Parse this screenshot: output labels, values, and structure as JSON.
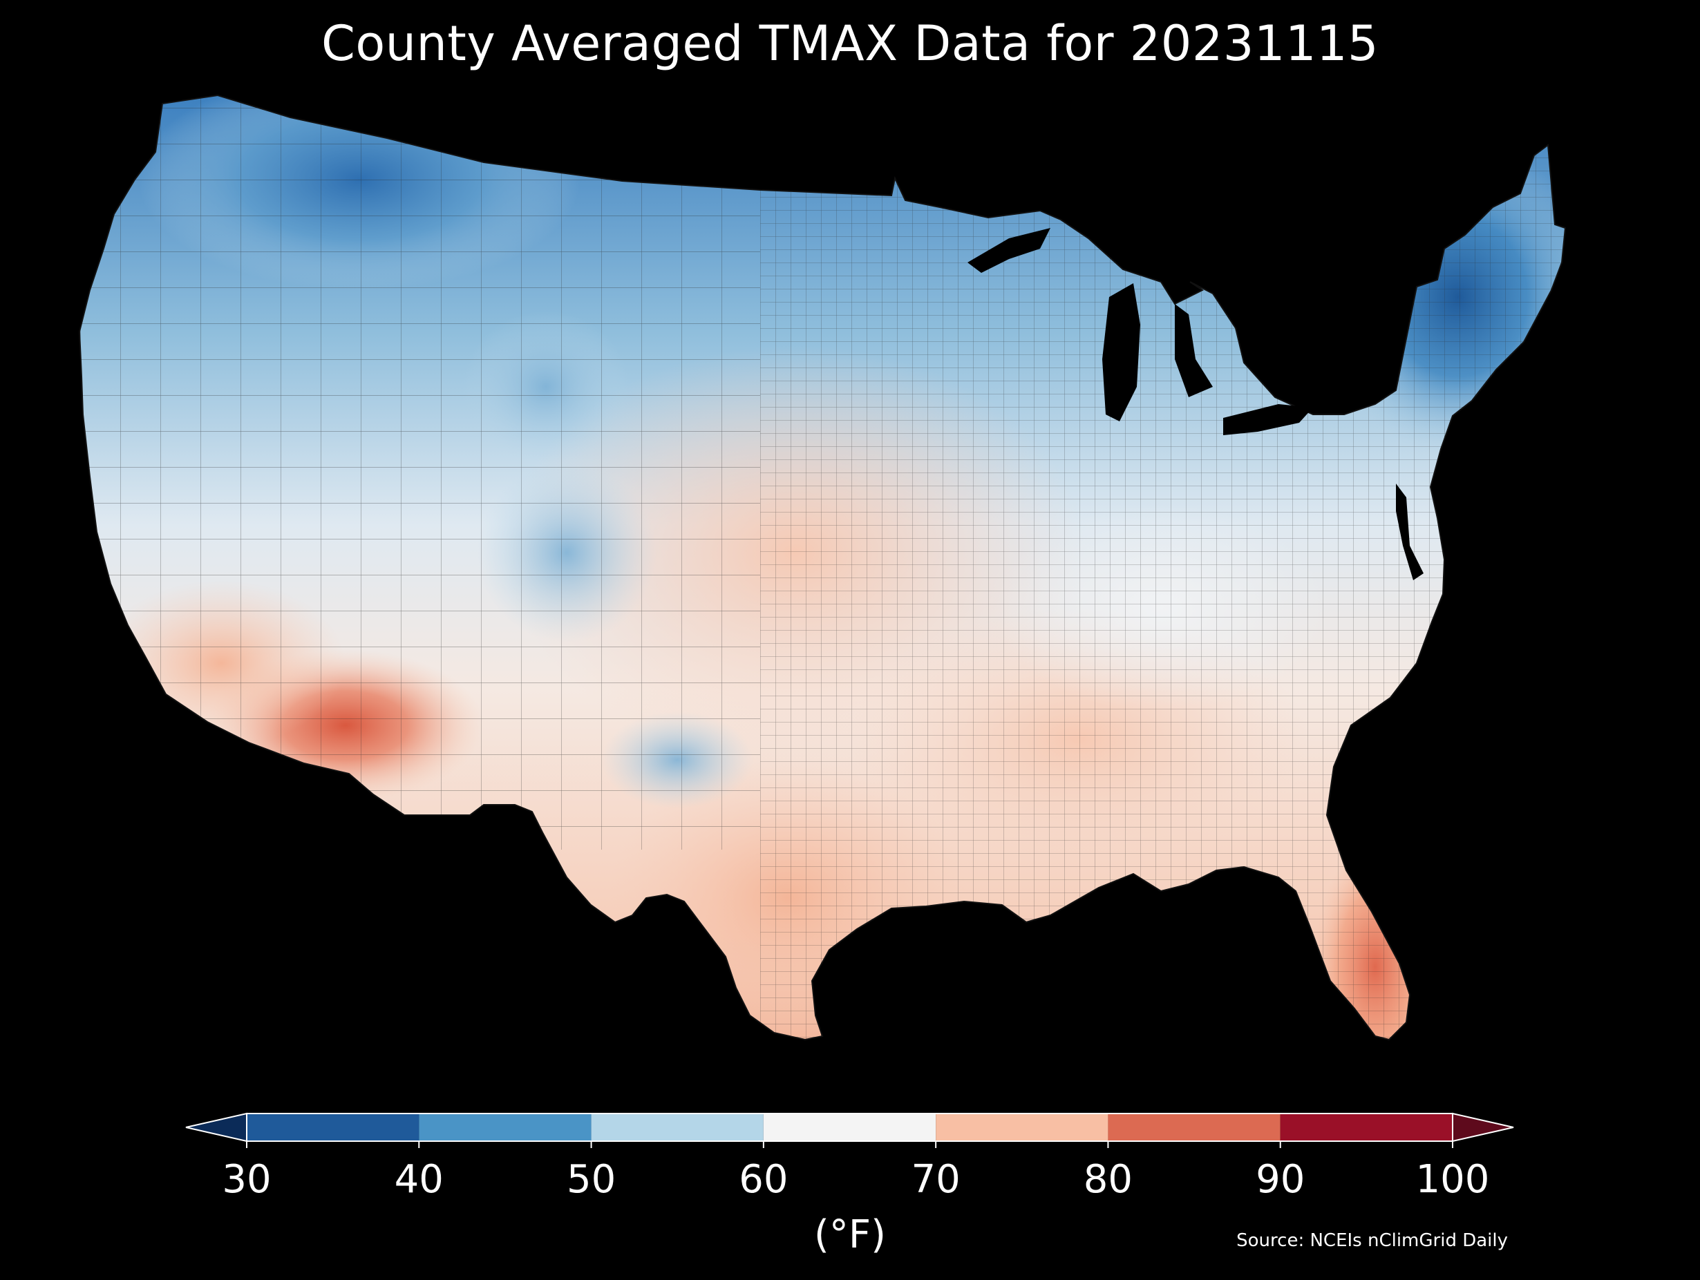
{
  "title": "County Averaged TMAX Data for 20231115",
  "source": "Source: NCEIs nClimGrid Daily",
  "colorbar": {
    "units_label": "(°F)",
    "ticks": [
      "30",
      "40",
      "50",
      "60",
      "70",
      "80",
      "90",
      "100"
    ],
    "bins": [
      {
        "from": 30,
        "to": 40,
        "color": "#1f5a9a"
      },
      {
        "from": 40,
        "to": 50,
        "color": "#4a94c6"
      },
      {
        "from": 50,
        "to": 60,
        "color": "#b4d6e8"
      },
      {
        "from": 60,
        "to": 70,
        "color": "#f4f4f4"
      },
      {
        "from": 70,
        "to": 80,
        "color": "#f8bfa4"
      },
      {
        "from": 80,
        "to": 90,
        "color": "#dc6a52"
      },
      {
        "from": 90,
        "to": 100,
        "color": "#9a1028"
      }
    ],
    "under_color": "#0b2b58",
    "over_color": "#5e0a1c"
  },
  "map": {
    "region": "Contiguous United States",
    "background_color": "#000000",
    "water_color": "#000000",
    "county_border_color": "#2a2a2a"
  }
}
